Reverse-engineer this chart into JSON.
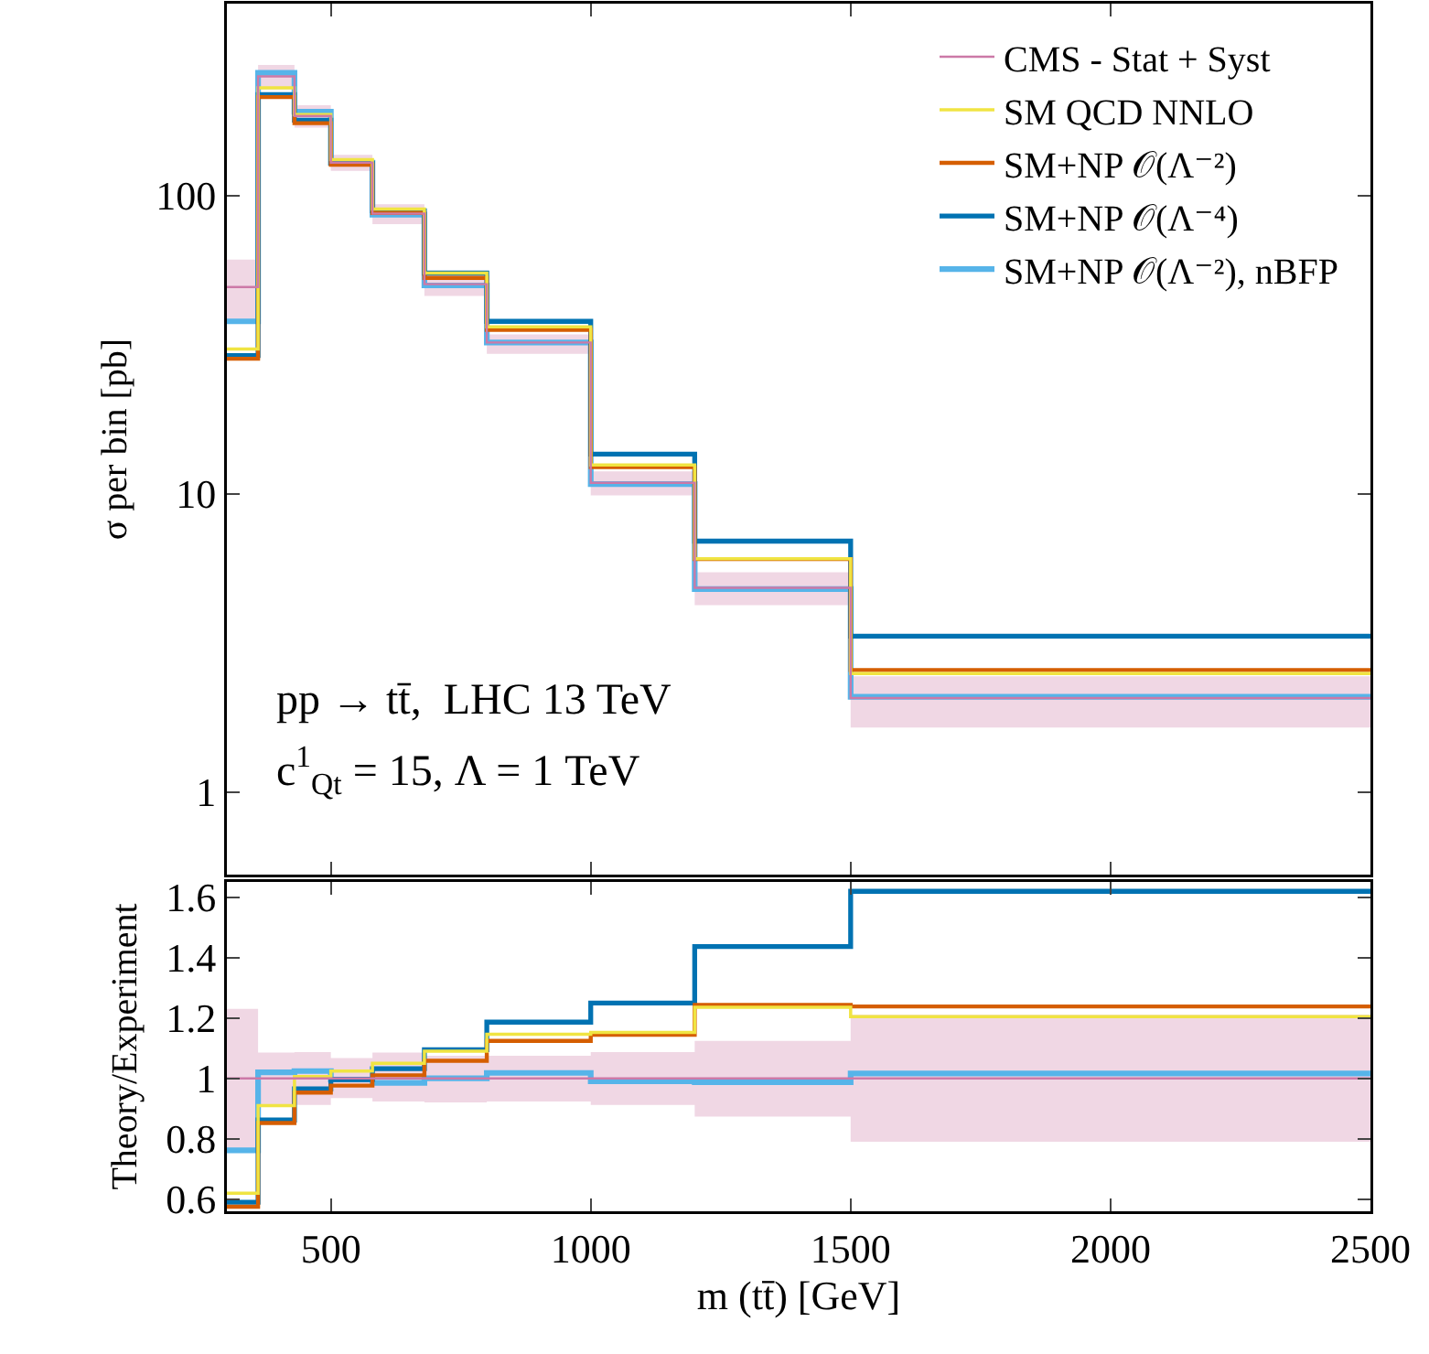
{
  "chart_data": [
    {
      "type": "step",
      "ylabel": "σ per bin [pb]",
      "x": [
        300,
        360,
        430,
        500,
        580,
        680,
        800,
        1000,
        1200,
        1500,
        2500
      ],
      "xlim": [
        300,
        2500
      ],
      "ylim": [
        0.53,
        440
      ],
      "yticks": [
        1,
        10,
        100
      ],
      "log": true,
      "grid": false,
      "legend": "top right",
      "tick_labels": "y",
      "annotations": [
        "pp → tt̄,  LHC 13 TeV",
        "c$^{1}$$_{Qt}$ = 15, Λ = 1 TeV"
      ],
      "series": [
        {
          "name": "CMS - Stat + Syst",
          "color": "#cc79a7",
          "values": [
            49.4,
            251,
            185,
            129,
            87,
            50.5,
            32.2,
            10.9,
            4.85,
            2.07,
            2.07
          ],
          "lower": [
            37.9,
            227,
            169,
            121,
            80.3,
            46.1,
            29.5,
            9.9,
            4.24,
            1.65,
            1.65
          ],
          "upper": [
            61,
            274,
            201,
            137,
            93.6,
            55.5,
            34.3,
            11.9,
            5.47,
            2.45,
            2.45
          ]
        },
        {
          "name": "SM QCD NNLO",
          "color": "#f0e442",
          "values": [
            30.6,
            230,
            187,
            132,
            90.2,
            55,
            36.3,
            12.5,
            6.07,
            2.5,
            2.5
          ]
        },
        {
          "name": "SM+NP 𝒪(Λ⁻²)",
          "color": "#d55e00",
          "values": [
            28.4,
            214,
            175,
            127,
            87.5,
            53,
            35.5,
            12.3,
            6.05,
            2.57,
            2.57
          ]
        },
        {
          "name": "SM+NP 𝒪(Λ⁻⁴)",
          "color": "#0072b2",
          "values": [
            29.1,
            218,
            179,
            128.5,
            89,
            55,
            37.9,
            13.6,
            6.95,
            3.34,
            3.34
          ]
        },
        {
          "name": "SM+NP 𝒪(Λ⁻²), nBFP",
          "color": "#56b4e9",
          "values": [
            37.9,
            258,
            191,
            129,
            86.3,
            50,
            32.2,
            10.8,
            4.8,
            2.09,
            2.09
          ]
        }
      ]
    },
    {
      "type": "step",
      "xlabel": "m (tt̄) [GeV]",
      "ylabel": "Theory/Experiment",
      "x": [
        300,
        360,
        430,
        500,
        580,
        680,
        800,
        1000,
        1200,
        1500,
        2500
      ],
      "xlim": [
        300,
        2500
      ],
      "xticks": [
        500,
        1000,
        1500,
        2000,
        2500
      ],
      "ylim": [
        0.56,
        1.65
      ],
      "yticks": [
        0.6,
        0.8,
        1,
        1.2,
        1.4,
        1.6
      ],
      "grid": false,
      "series": [
        {
          "color": "#cc79a7",
          "values": [
            1,
            1,
            1,
            1,
            1,
            1,
            1,
            1,
            1,
            1,
            1
          ],
          "lower": [
            0.767,
            0.913,
            0.912,
            0.935,
            0.923,
            0.92,
            0.923,
            0.912,
            0.873,
            0.79,
            0.79
          ],
          "upper": [
            1.23,
            1.085,
            1.087,
            1.067,
            1.085,
            1.075,
            1.075,
            1.087,
            1.124,
            1.21,
            1.21
          ]
        },
        {
          "color": "#f0e442",
          "values": [
            0.62,
            0.91,
            1.006,
            1.024,
            1.05,
            1.09,
            1.146,
            1.152,
            1.235,
            1.204,
            1.204
          ]
        },
        {
          "color": "#d55e00",
          "values": [
            0.575,
            0.852,
            0.953,
            0.976,
            1.01,
            1.058,
            1.124,
            1.144,
            1.243,
            1.238,
            1.238
          ]
        },
        {
          "color": "#0072b2",
          "values": [
            0.59,
            0.862,
            0.965,
            0.996,
            1.032,
            1.095,
            1.186,
            1.249,
            1.436,
            1.619,
            1.619
          ]
        },
        {
          "color": "#56b4e9",
          "values": [
            0.762,
            1.02,
            1.024,
            0.996,
            0.985,
            1.0,
            1.018,
            0.99,
            0.987,
            1.016,
            1.016
          ]
        }
      ]
    }
  ]
}
